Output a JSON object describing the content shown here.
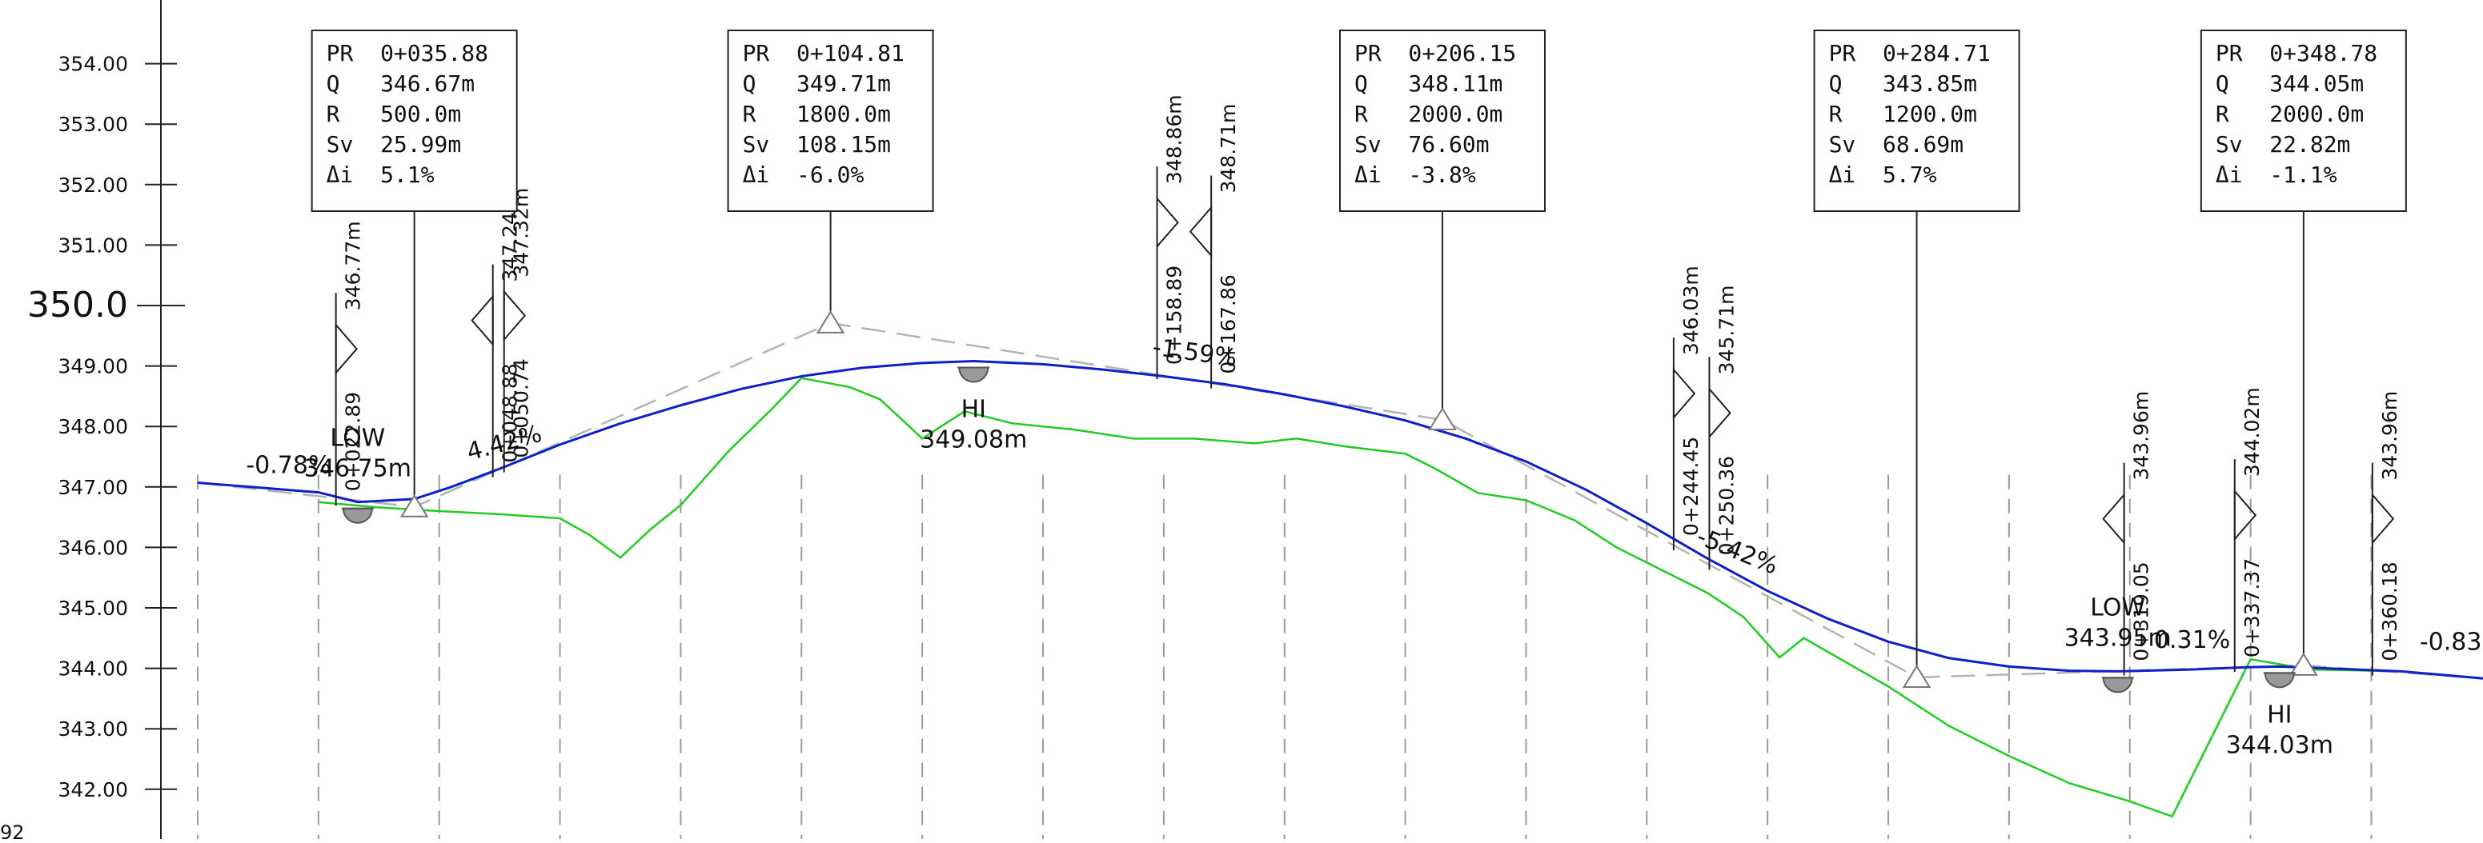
{
  "colors": {
    "design_line": "#1020c8",
    "ground_line": "#22cc22",
    "tangent_line": "#b4b4b4",
    "station_grid": "#9a9a9a",
    "text": "#111111",
    "point_symbol": "#999999"
  },
  "elevation_axis": {
    "ticks": [
      {
        "label": "354.00",
        "value": 354
      },
      {
        "label": "353.00",
        "value": 353
      },
      {
        "label": "352.00",
        "value": 352
      },
      {
        "label": "351.00",
        "value": 351
      },
      {
        "label": "350.0",
        "value": 350,
        "major": true
      },
      {
        "label": "349.00",
        "value": 349
      },
      {
        "label": "348.00",
        "value": 348
      },
      {
        "label": "347.00",
        "value": 347
      },
      {
        "label": "346.00",
        "value": 346
      },
      {
        "label": "345.00",
        "value": 345
      },
      {
        "label": "344.00",
        "value": 344
      },
      {
        "label": "343.00",
        "value": 343
      },
      {
        "label": "342.00",
        "value": 342
      }
    ],
    "corner_label": "92"
  },
  "curves": [
    {
      "lines": [
        "PR  0+035.88",
        "Q   346.67m",
        "R   500.0m",
        "Sv  25.99m",
        "Δi  5.1%"
      ],
      "pvi_station": 35.88,
      "pvi_elev": 346.67
    },
    {
      "lines": [
        "PR  0+104.81",
        "Q   349.71m",
        "R   1800.0m",
        "Sv  108.15m",
        "Δi  -6.0%"
      ],
      "pvi_station": 104.81,
      "pvi_elev": 349.71
    },
    {
      "lines": [
        "PR  0+206.15",
        "Q   348.11m",
        "R   2000.0m",
        "Sv  76.60m",
        "Δi  -3.8%"
      ],
      "pvi_station": 206.15,
      "pvi_elev": 348.11
    },
    {
      "lines": [
        "PR  0+284.71",
        "Q   343.85m",
        "R   1200.0m",
        "Sv  68.69m",
        "Δi  5.7%"
      ],
      "pvi_station": 284.71,
      "pvi_elev": 343.85
    },
    {
      "lines": [
        "PR  0+348.78",
        "Q   344.05m",
        "R   2000.0m",
        "Sv  22.82m",
        "Δi  -1.1%"
      ],
      "pvi_station": 348.78,
      "pvi_elev": 344.05
    }
  ],
  "tangent_points": [
    {
      "station_label": "0+022.89",
      "elev_label": "346.77m",
      "station": 22.89,
      "elev": 346.77
    },
    {
      "station_label": "0+048.88",
      "elev_label": "347.24m",
      "station": 48.88,
      "elev": 347.24
    },
    {
      "station_label": "0+050.74",
      "elev_label": "347.32m",
      "station": 50.74,
      "elev": 347.32
    },
    {
      "station_label": "0+158.89",
      "elev_label": "348.86m",
      "station": 158.89,
      "elev": 348.86
    },
    {
      "station_label": "0+167.86",
      "elev_label": "348.71m",
      "station": 167.86,
      "elev": 348.71
    },
    {
      "station_label": "0+244.45",
      "elev_label": "346.03m",
      "station": 244.45,
      "elev": 346.03
    },
    {
      "station_label": "0+250.36",
      "elev_label": "345.71m",
      "station": 250.36,
      "elev": 345.71
    },
    {
      "station_label": "0+319.05",
      "elev_label": "343.96m",
      "station": 319.05,
      "elev": 343.96
    },
    {
      "station_label": "0+337.37",
      "elev_label": "344.02m",
      "station": 337.37,
      "elev": 344.02
    },
    {
      "station_label": "0+360.18",
      "elev_label": "343.96m",
      "station": 360.18,
      "elev": 343.96
    }
  ],
  "extreme_points": [
    {
      "type": "LOW",
      "elev_label": "346.75m",
      "station": 26.5,
      "elev": 346.75
    },
    {
      "type": "HI",
      "elev_label": "349.08m",
      "station": 128.5,
      "elev": 349.08
    },
    {
      "type": "LOW",
      "elev_label": "343.95m",
      "station": 318.0,
      "elev": 343.95
    },
    {
      "type": "HI",
      "elev_label": "344.03m",
      "station": 344.8,
      "elev": 344.03
    }
  ],
  "grades": [
    {
      "label": "-0.78%",
      "station": 8.0,
      "elev": 347.07
    },
    {
      "label": "4.42%",
      "station": 45.0,
      "elev": 347.28
    },
    {
      "label": "-1.59%",
      "station": 158.0,
      "elev": 349.03
    },
    {
      "label": "-5.42%",
      "station": 248.0,
      "elev": 345.92
    },
    {
      "label": "0.31%",
      "station": 324.0,
      "elev": 344.18
    },
    {
      "label": "-0.83%",
      "station": 368.0,
      "elev": 344.15
    }
  ],
  "grid_stations": [
    0,
    20,
    40,
    60,
    80,
    100,
    120,
    140,
    160,
    180,
    200,
    220,
    240,
    260,
    280,
    300,
    320,
    340,
    360
  ],
  "design_profile": [
    [
      0,
      347.07
    ],
    [
      10,
      346.99
    ],
    [
      20,
      346.91
    ],
    [
      26.5,
      346.75
    ],
    [
      35.88,
      346.8
    ],
    [
      42,
      347.0
    ],
    [
      50,
      347.3
    ],
    [
      60,
      347.7
    ],
    [
      70,
      348.05
    ],
    [
      80,
      348.35
    ],
    [
      90,
      348.62
    ],
    [
      100,
      348.83
    ],
    [
      110,
      348.97
    ],
    [
      120,
      349.05
    ],
    [
      128.5,
      349.08
    ],
    [
      140,
      349.03
    ],
    [
      150,
      348.94
    ],
    [
      160,
      348.83
    ],
    [
      170,
      348.7
    ],
    [
      180,
      348.53
    ],
    [
      190,
      348.33
    ],
    [
      200,
      348.1
    ],
    [
      210,
      347.8
    ],
    [
      220,
      347.42
    ],
    [
      230,
      346.95
    ],
    [
      240,
      346.4
    ],
    [
      250,
      345.82
    ],
    [
      260,
      345.28
    ],
    [
      270,
      344.82
    ],
    [
      280,
      344.44
    ],
    [
      290,
      344.17
    ],
    [
      300,
      344.03
    ],
    [
      310,
      343.96
    ],
    [
      318,
      343.95
    ],
    [
      330,
      343.98
    ],
    [
      340,
      344.02
    ],
    [
      344.8,
      344.03
    ],
    [
      355,
      343.99
    ],
    [
      365,
      343.95
    ],
    [
      380,
      343.82
    ]
  ],
  "ground_profile": [
    [
      20,
      346.75
    ],
    [
      30,
      346.66
    ],
    [
      40,
      346.6
    ],
    [
      50,
      346.55
    ],
    [
      60,
      346.48
    ],
    [
      65,
      346.2
    ],
    [
      70,
      345.83
    ],
    [
      75,
      346.3
    ],
    [
      80,
      346.7
    ],
    [
      88,
      347.6
    ],
    [
      95,
      348.28
    ],
    [
      100,
      348.8
    ],
    [
      108,
      348.65
    ],
    [
      113,
      348.45
    ],
    [
      120,
      347.8
    ],
    [
      127,
      348.25
    ],
    [
      135,
      348.05
    ],
    [
      145,
      347.95
    ],
    [
      155,
      347.8
    ],
    [
      165,
      347.8
    ],
    [
      175,
      347.72
    ],
    [
      182,
      347.8
    ],
    [
      190,
      347.67
    ],
    [
      200,
      347.55
    ],
    [
      205,
      347.3
    ],
    [
      212,
      346.9
    ],
    [
      220,
      346.78
    ],
    [
      228,
      346.45
    ],
    [
      235,
      346.0
    ],
    [
      242,
      345.65
    ],
    [
      250,
      345.25
    ],
    [
      256,
      344.85
    ],
    [
      262,
      344.18
    ],
    [
      266,
      344.5
    ],
    [
      280,
      343.7
    ],
    [
      290,
      343.05
    ],
    [
      300,
      342.55
    ],
    [
      310,
      342.1
    ],
    [
      320,
      341.8
    ],
    [
      327,
      341.55
    ],
    [
      340,
      344.15
    ],
    [
      350,
      343.98
    ],
    [
      365,
      343.95
    ],
    [
      380,
      343.82
    ]
  ]
}
